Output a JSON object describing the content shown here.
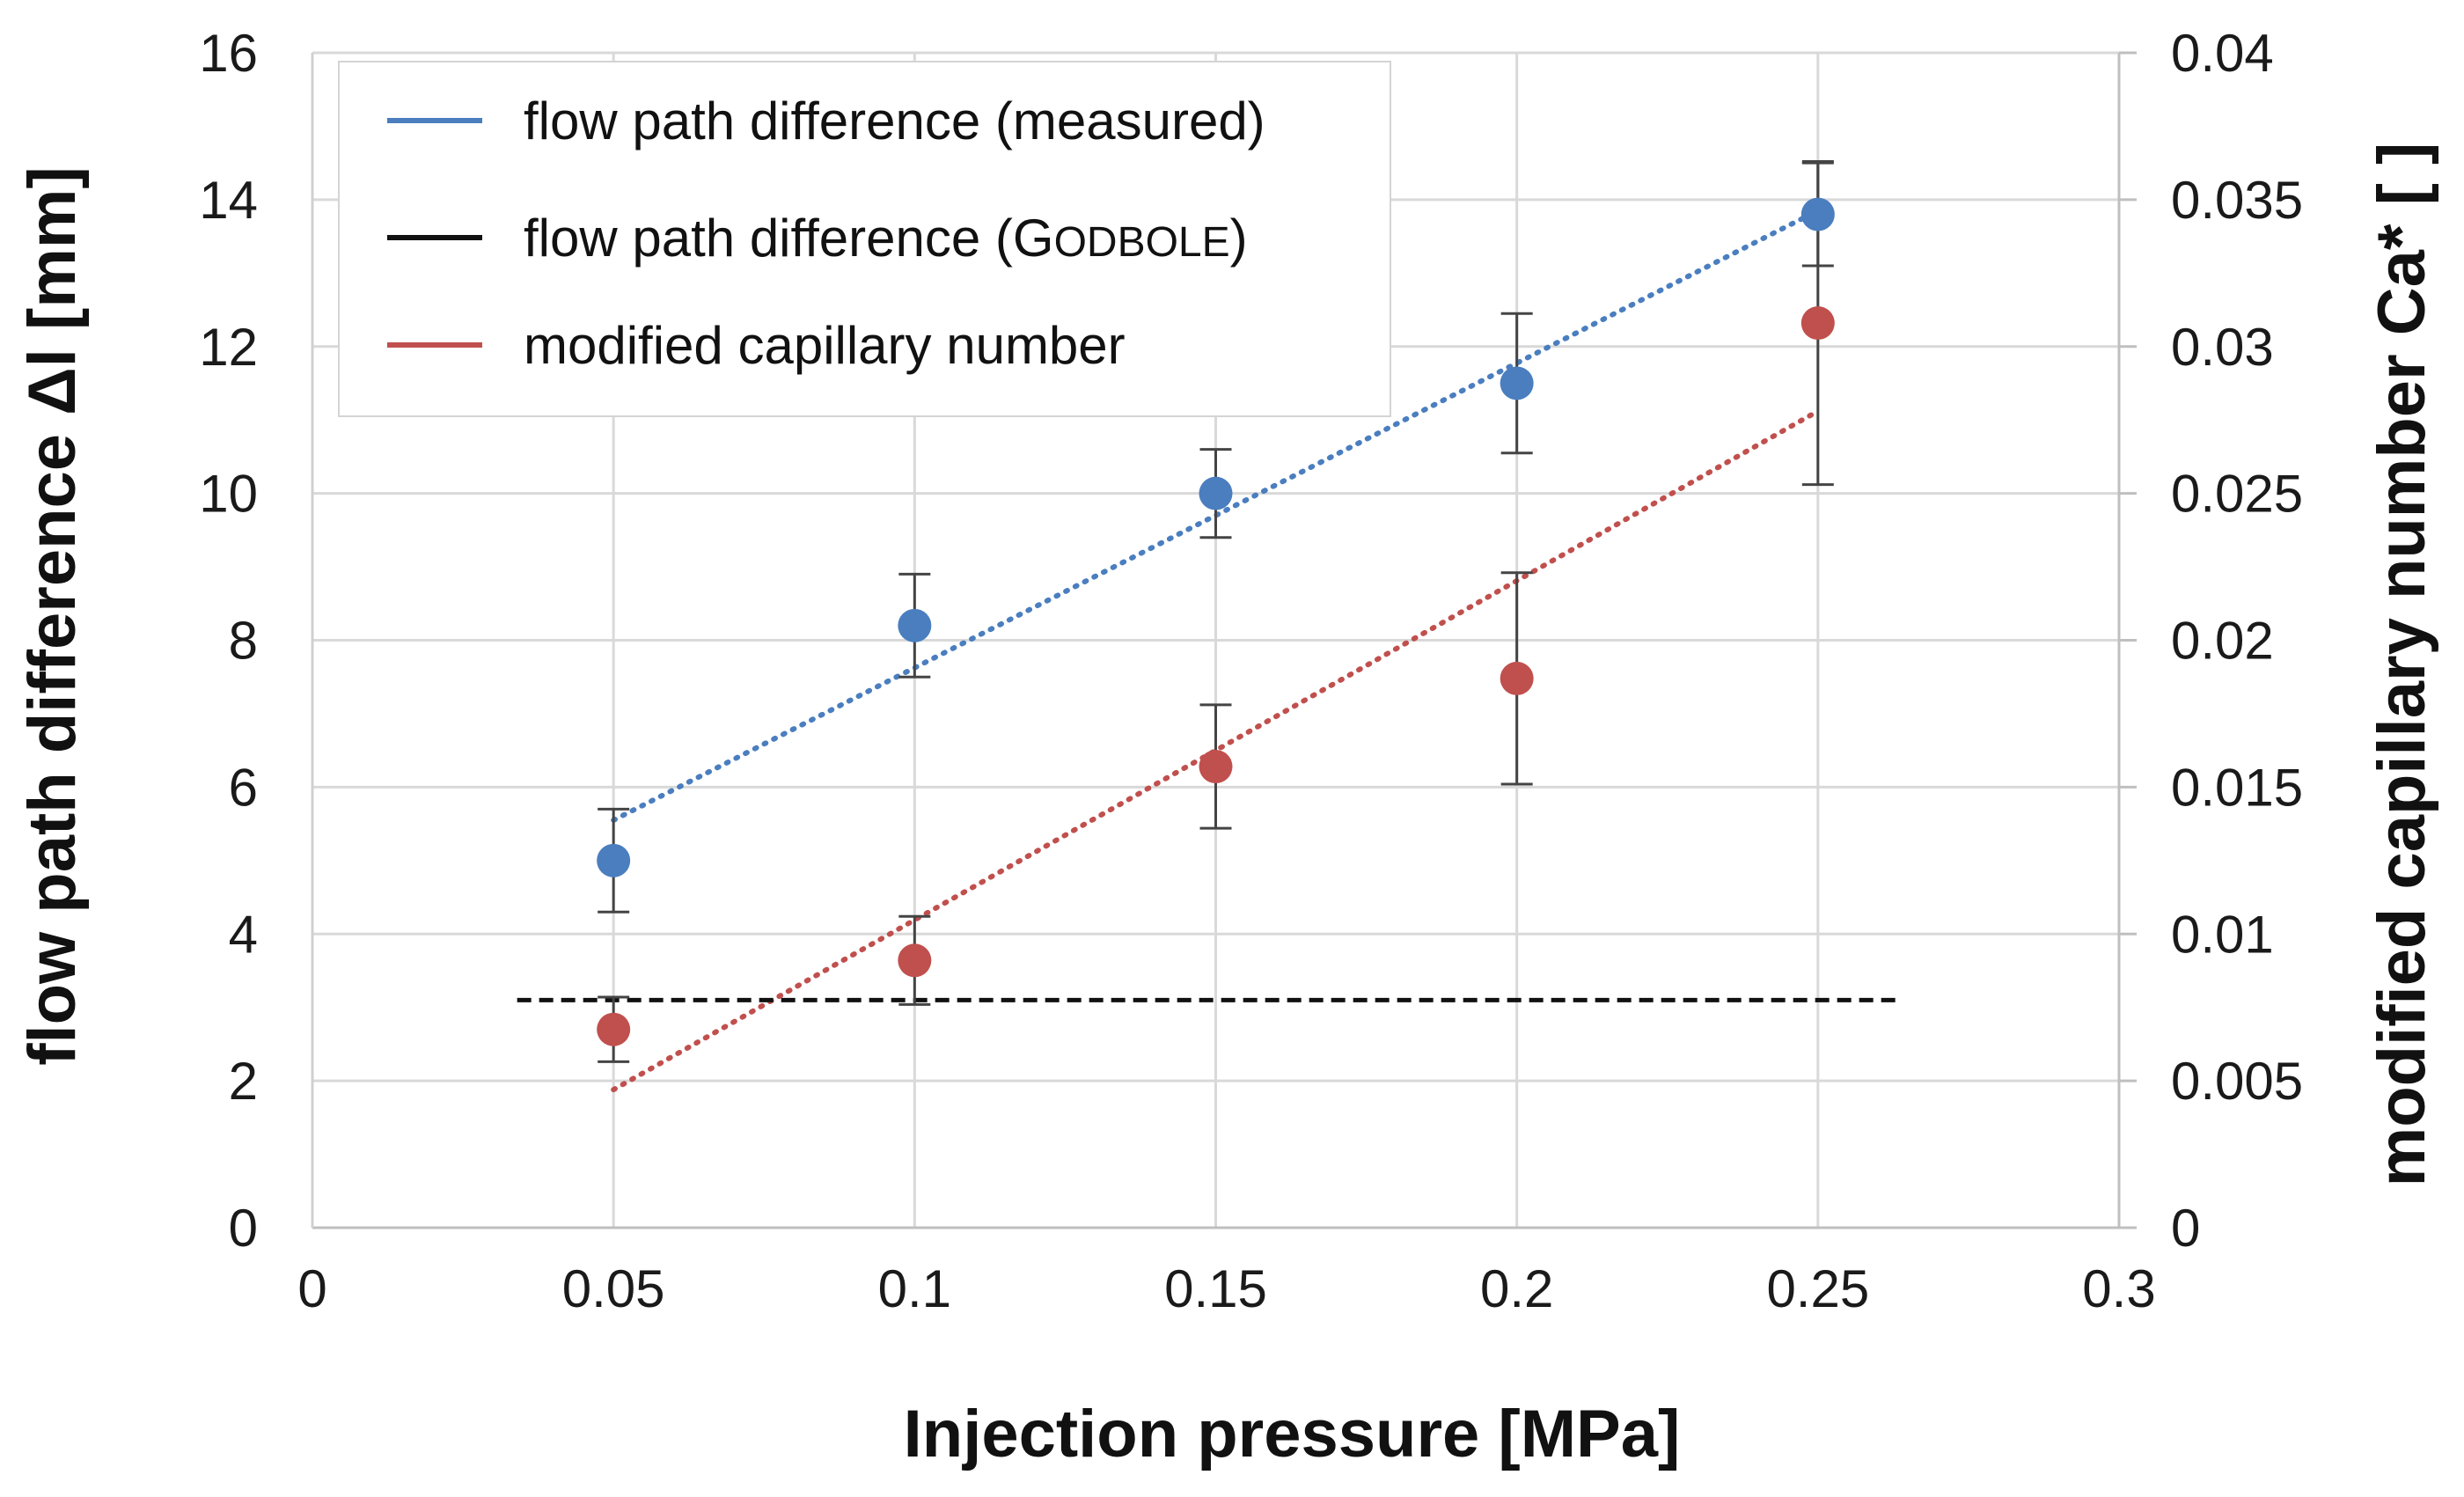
{
  "chart_data": {
    "type": "scatter",
    "x_axis": {
      "label": "Injection pressure [MPa]",
      "range": [
        0,
        0.3
      ],
      "ticks": [
        0,
        0.05,
        0.1,
        0.15,
        0.2,
        0.25,
        0.3
      ],
      "tick_labels": [
        "0",
        "0.05",
        "0.1",
        "0.15",
        "0.2",
        "0.25",
        "0.3"
      ]
    },
    "y_axis_left": {
      "label": "flow path difference  Δl [mm]",
      "range": [
        0,
        16
      ],
      "ticks": [
        0,
        2,
        4,
        6,
        8,
        10,
        12,
        14,
        16
      ],
      "tick_labels": [
        "0",
        "2",
        "4",
        "6",
        "8",
        "10",
        "12",
        "14",
        "16"
      ]
    },
    "y_axis_right": {
      "label": "modified capillary number Ca* [ ]",
      "range": [
        0,
        0.04
      ],
      "ticks": [
        0,
        0.005,
        0.01,
        0.015,
        0.02,
        0.025,
        0.03,
        0.035,
        0.04
      ],
      "tick_labels": [
        "0",
        "0.005",
        "0.01",
        "0.015",
        "0.02",
        "0.025",
        "0.03",
        "0.035",
        "0.04"
      ]
    },
    "grid": true,
    "legend": {
      "position": "top-left",
      "entries": [
        {
          "label": "flow path difference (measured)",
          "color": "#4a7ebf"
        },
        {
          "label_parts": [
            "flow path difference (G",
            "ODBOLE",
            ")"
          ],
          "color": "#111111"
        },
        {
          "label": "modified capillary number",
          "color": "#c0504d"
        }
      ]
    },
    "series": [
      {
        "name": "flow path difference (measured)",
        "axis": "left",
        "color": "#4a7ebf",
        "x": [
          0.05,
          0.1,
          0.15,
          0.2,
          0.25
        ],
        "y": [
          5.0,
          8.2,
          10.0,
          11.5,
          13.8
        ],
        "error": [
          0.7,
          0.7,
          0.6,
          0.95,
          0.7
        ],
        "trendline": {
          "x": [
            0.05,
            0.25
          ],
          "y": [
            5.55,
            13.85
          ]
        }
      },
      {
        "name": "modified capillary number",
        "axis": "right",
        "color": "#c0504d",
        "x": [
          0.05,
          0.1,
          0.15,
          0.2,
          0.25
        ],
        "y": [
          0.00675,
          0.0091,
          0.0157,
          0.0187,
          0.0308
        ],
        "error": [
          0.0011,
          0.0015,
          0.0021,
          0.0036,
          0.0055
        ],
        "trendline": {
          "x": [
            0.05,
            0.25
          ],
          "y": [
            0.0047,
            0.0278
          ]
        }
      },
      {
        "name": "flow path difference (GODBOLE)",
        "axis": "left",
        "color": "#111111",
        "style": "dashed",
        "x": [
          0.034,
          0.264
        ],
        "y": [
          3.1,
          3.1
        ]
      }
    ]
  }
}
